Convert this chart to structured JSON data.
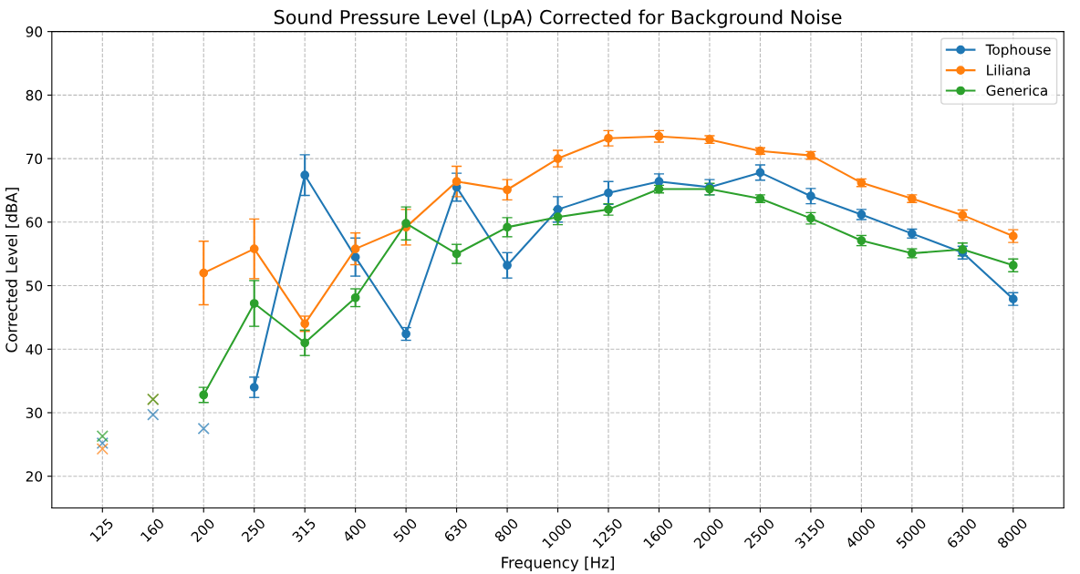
{
  "chart_data": {
    "type": "line",
    "title": "Sound Pressure Level (LpA) Corrected for Background Noise",
    "xlabel": "Frequency [Hz]",
    "ylabel": "Corrected Level [dBA]",
    "categories": [
      "125",
      "160",
      "200",
      "250",
      "315",
      "400",
      "500",
      "630",
      "800",
      "1000",
      "1250",
      "1600",
      "2000",
      "2500",
      "3150",
      "4000",
      "5000",
      "6300",
      "8000"
    ],
    "ylim": [
      15,
      90
    ],
    "yticks": [
      20,
      30,
      40,
      50,
      60,
      70,
      80,
      90
    ],
    "grid": true,
    "legend": "top right",
    "marker": "circle",
    "series": [
      {
        "name": "Tophouse",
        "color": "#1f77b4",
        "values": [
          null,
          null,
          null,
          34.0,
          67.4,
          54.5,
          42.4,
          65.5,
          53.2,
          62.0,
          64.6,
          66.4,
          65.5,
          67.8,
          64.1,
          61.2,
          58.2,
          55.2,
          47.9
        ],
        "errors": [
          null,
          null,
          null,
          1.6,
          3.2,
          3.0,
          1.0,
          2.2,
          2.0,
          2.0,
          1.8,
          1.2,
          1.2,
          1.2,
          1.2,
          0.8,
          0.7,
          1.0,
          1.0
        ]
      },
      {
        "name": "Liliana",
        "color": "#ff7f0e",
        "values": [
          null,
          null,
          52.0,
          55.8,
          44.0,
          55.8,
          59.2,
          66.4,
          65.1,
          70.0,
          73.2,
          73.5,
          73.0,
          71.2,
          70.5,
          66.2,
          63.7,
          61.1,
          57.8
        ],
        "errors": [
          null,
          null,
          5.0,
          4.7,
          1.2,
          2.5,
          2.8,
          2.4,
          1.6,
          1.3,
          1.2,
          0.9,
          0.6,
          0.5,
          0.6,
          0.6,
          0.6,
          0.8,
          1.0
        ]
      },
      {
        "name": "Generica",
        "color": "#2ca02c",
        "values": [
          null,
          null,
          32.8,
          47.2,
          41.0,
          48.1,
          59.8,
          55.0,
          59.2,
          60.8,
          62.0,
          65.2,
          65.2,
          63.7,
          60.6,
          57.1,
          55.1,
          55.7,
          53.2
        ],
        "errors": [
          null,
          null,
          1.2,
          3.6,
          2.0,
          1.4,
          2.6,
          1.5,
          1.5,
          1.2,
          0.9,
          0.6,
          0.9,
          0.6,
          0.9,
          0.8,
          0.7,
          1.0,
          1.0
        ]
      },
      {
        "type": "scatter",
        "marker": "cross",
        "color": "#1f77b4",
        "x": [
          "125",
          "160",
          "200"
        ],
        "values": [
          25.2,
          29.7,
          27.5
        ]
      },
      {
        "type": "scatter",
        "marker": "cross",
        "color": "#ff7f0e",
        "x": [
          "125",
          "160"
        ],
        "values": [
          24.3,
          32.1
        ]
      },
      {
        "type": "scatter",
        "marker": "cross",
        "color": "#2ca02c",
        "x": [
          "125",
          "160"
        ],
        "values": [
          26.3,
          32.1
        ]
      }
    ]
  }
}
